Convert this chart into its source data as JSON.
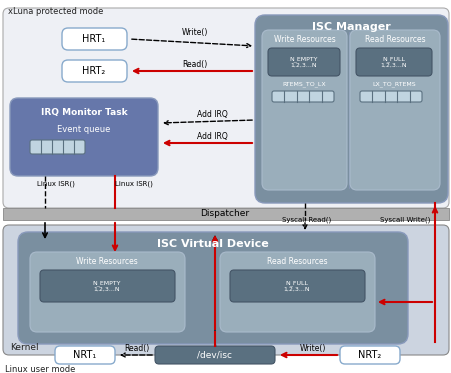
{
  "bg_color": "#ffffff",
  "protected_mode_label": "xLuna protected mode",
  "linux_user_mode_label": "Linux user mode",
  "kernel_label": "Kernel",
  "dispatcher_label": "Dispatcher",
  "isc_manager_label": "ISC Manager",
  "isc_vd_label": "ISC Virtual Device",
  "hrt1_label": "HRT₁",
  "hrt2_label": "HRT₂",
  "nrt1_label": "NRT₁",
  "nrt2_label": "NRT₂",
  "dev_isc_label": "/dev/isc",
  "irq_monitor_label": "IRQ Monitor Task",
  "event_queue_label": "Event queue",
  "write_res_label": "Write Resources",
  "read_res_label": "Read Resources",
  "n_empty_label": "N_EMPTY\n1,2,3,...N",
  "n_full_label": "N_FULL\n1,2,3...N",
  "rtems_to_lx_label": "RTEMS_TO_LX",
  "lx_to_rtems_label": "LX_TO_RTEMS",
  "write_label": "Write()",
  "read_label": "Read()",
  "add_irq1_label": "Add IRQ",
  "add_irq2_label": "Add IRQ",
  "linux_isr1_label": "Linux ISR()",
  "linux_isr2_label": "Linux ISR()",
  "syscall_read_label": "Syscall Read()",
  "syscall_write_label": "Syscall Write()",
  "write2_label": "Write()",
  "read2_label": "Read()",
  "color_protected_bg": "#eef0f5",
  "color_protected_border": "#aaaaaa",
  "color_isc_manager_bg": "#7a8fa0",
  "color_isc_inner": "#9aaebb",
  "color_resource_box": "#dde8ee",
  "color_data_box": "#5a7080",
  "color_queue_bg": "#c0d4e0",
  "color_queue_line": "#5a7080",
  "color_hrt_border": "#88aacc",
  "color_irq_box": "#6677aa",
  "color_dispatcher": "#b0b0b0",
  "color_dispatcher_border": "#888888",
  "color_kernel_bg": "#ccd4e0",
  "color_kernel_border": "#888888",
  "color_isc_vd_bg": "#7a8fa0",
  "color_dev_isc": "#5a7080",
  "color_nrt_border": "#88aacc",
  "color_arrow_black": "#000000",
  "color_arrow_red": "#cc0000",
  "color_white": "#ffffff",
  "color_text_white": "#ffffff",
  "color_text_dark": "#222222"
}
